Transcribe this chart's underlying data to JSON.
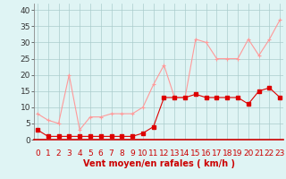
{
  "x": [
    0,
    1,
    2,
    3,
    4,
    5,
    6,
    7,
    8,
    9,
    10,
    11,
    12,
    13,
    14,
    15,
    16,
    17,
    18,
    19,
    20,
    21,
    22,
    23
  ],
  "rafales": [
    8,
    6,
    5,
    20,
    3,
    7,
    7,
    8,
    8,
    8,
    10,
    17,
    23,
    13,
    13,
    31,
    30,
    25,
    25,
    25,
    31,
    26,
    31,
    37
  ],
  "moyen": [
    3,
    1,
    1,
    1,
    1,
    1,
    1,
    1,
    1,
    1,
    2,
    4,
    13,
    13,
    13,
    14,
    13,
    13,
    13,
    13,
    11,
    15,
    16,
    13
  ],
  "line_color_rafales": "#ff9999",
  "line_color_moyen": "#dd0000",
  "bg_color": "#dff4f4",
  "grid_color": "#aacccc",
  "xlabel": "Vent moyen/en rafales ( km/h )",
  "xlabel_color": "#cc0000",
  "xlabel_fontsize": 7,
  "ylabel_ticks": [
    0,
    5,
    10,
    15,
    20,
    25,
    30,
    35,
    40
  ],
  "ylim": [
    0,
    42
  ],
  "xlim": [
    -0.3,
    23.3
  ],
  "tick_fontsize": 6.5,
  "spine_bottom_color": "#cc0000",
  "spine_left_color": "#888888"
}
